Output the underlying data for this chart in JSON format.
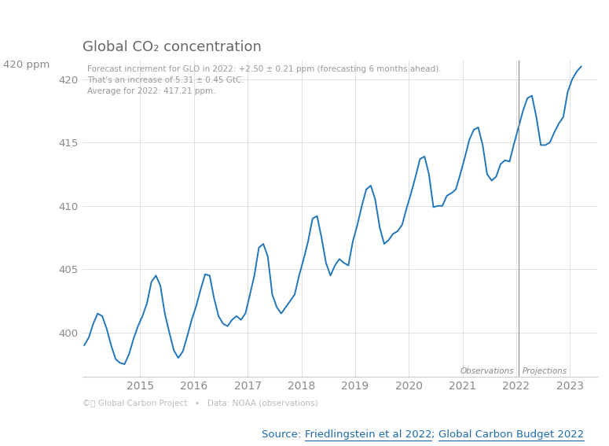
{
  "title": "Global CO₂ concentration",
  "annotation_lines": [
    "Forecast increment for GLO in 2022: +2.50 ± 0.21 ppm (forecasting 6 months ahead).",
    "That's an increase of 5.31 ± 0.45 GtC.",
    "Average for 2022: 417.21 ppm."
  ],
  "ylabel": "420 ppm",
  "xlabel_note": "©Ⓢ Global Carbon Project   •   Data: NOAA (observations)",
  "source_label": "Source: ",
  "source_link1": "Friedlingstein et al 2022",
  "source_sep": "; ",
  "source_link2": "Global Carbon Budget 2022",
  "source_color": "#1a6ab3",
  "line_color": "#2176bb",
  "vline_color": "#888888",
  "vline_x": 2022.04,
  "obs_label": "Observations",
  "proj_label": "Projections",
  "title_color": "#666666",
  "annotation_color": "#999999",
  "axis_color": "#cccccc",
  "tick_color": "#888888",
  "grid_color": "#e0e0e0",
  "background_color": "#ffffff",
  "ylim": [
    396.5,
    421.5
  ],
  "xlim": [
    2013.92,
    2023.5
  ],
  "yticks": [
    400,
    405,
    410,
    415,
    420
  ],
  "xticks": [
    2015,
    2016,
    2017,
    2018,
    2019,
    2020,
    2021,
    2022,
    2023
  ],
  "data_x": [
    2013.958,
    2014.042,
    2014.125,
    2014.208,
    2014.292,
    2014.375,
    2014.458,
    2014.542,
    2014.625,
    2014.708,
    2014.792,
    2014.875,
    2014.958,
    2015.042,
    2015.125,
    2015.208,
    2015.292,
    2015.375,
    2015.458,
    2015.542,
    2015.625,
    2015.708,
    2015.792,
    2015.875,
    2015.958,
    2016.042,
    2016.125,
    2016.208,
    2016.292,
    2016.375,
    2016.458,
    2016.542,
    2016.625,
    2016.708,
    2016.792,
    2016.875,
    2016.958,
    2017.042,
    2017.125,
    2017.208,
    2017.292,
    2017.375,
    2017.458,
    2017.542,
    2017.625,
    2017.708,
    2017.792,
    2017.875,
    2017.958,
    2018.042,
    2018.125,
    2018.208,
    2018.292,
    2018.375,
    2018.458,
    2018.542,
    2018.625,
    2018.708,
    2018.792,
    2018.875,
    2018.958,
    2019.042,
    2019.125,
    2019.208,
    2019.292,
    2019.375,
    2019.458,
    2019.542,
    2019.625,
    2019.708,
    2019.792,
    2019.875,
    2019.958,
    2020.042,
    2020.125,
    2020.208,
    2020.292,
    2020.375,
    2020.458,
    2020.542,
    2020.625,
    2020.708,
    2020.792,
    2020.875,
    2020.958,
    2021.042,
    2021.125,
    2021.208,
    2021.292,
    2021.375,
    2021.458,
    2021.542,
    2021.625,
    2021.708,
    2021.792,
    2021.875,
    2021.958,
    2022.042,
    2022.125,
    2022.208,
    2022.292,
    2022.375,
    2022.458,
    2022.542,
    2022.625,
    2022.708,
    2022.792,
    2022.875,
    2022.958,
    2023.042,
    2023.125,
    2023.208
  ],
  "data_y": [
    399.0,
    399.6,
    400.7,
    401.5,
    401.3,
    400.3,
    399.0,
    397.9,
    397.6,
    397.5,
    398.3,
    399.5,
    400.5,
    401.3,
    402.3,
    404.0,
    404.5,
    403.7,
    401.5,
    400.0,
    398.6,
    398.0,
    398.5,
    399.7,
    401.0,
    402.1,
    403.4,
    404.6,
    404.5,
    402.7,
    401.3,
    400.7,
    400.5,
    401.0,
    401.3,
    401.0,
    401.5,
    403.0,
    404.5,
    406.7,
    407.0,
    406.0,
    403.0,
    402.0,
    401.5,
    402.0,
    402.5,
    403.0,
    404.5,
    405.8,
    407.2,
    409.0,
    409.2,
    407.5,
    405.5,
    404.5,
    405.3,
    405.8,
    405.5,
    405.3,
    407.2,
    408.5,
    410.0,
    411.3,
    411.6,
    410.5,
    408.3,
    407.0,
    407.3,
    407.8,
    408.0,
    408.5,
    409.8,
    411.0,
    412.3,
    413.7,
    413.9,
    412.5,
    409.9,
    410.0,
    410.0,
    410.8,
    411.0,
    411.3,
    412.5,
    413.8,
    415.2,
    416.0,
    416.2,
    414.8,
    412.5,
    412.0,
    412.3,
    413.3,
    413.6,
    413.5,
    414.9,
    416.2,
    417.5,
    418.5,
    418.7,
    417.0,
    414.8,
    414.8,
    415.0,
    415.8,
    416.5,
    417.0,
    419.0,
    420.0,
    420.6,
    421.0
  ],
  "figsize": [
    7.75,
    5.67
  ],
  "dpi": 100
}
